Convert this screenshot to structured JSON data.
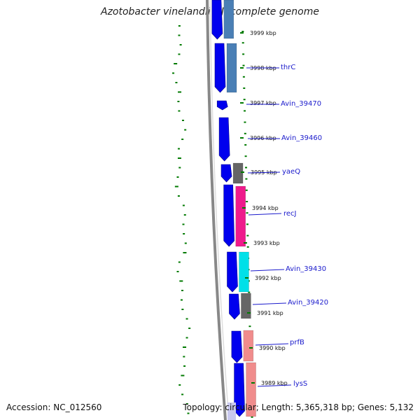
{
  "title": "Azotobacter vinelandii DJ, complete genome",
  "accession_text": "Accession: NC_012560",
  "summary_text": "Topology: circular; Length: 5,365,318 bp; Genes: 5,132",
  "scale_ticks": [
    {
      "label": "3999 kbp"
    },
    {
      "label": "3998 kbp"
    },
    {
      "label": "3997 kbp"
    },
    {
      "label": "3996 kbp"
    },
    {
      "label": "3995 kbp"
    },
    {
      "label": "3994 kbp"
    },
    {
      "label": "3993 kbp"
    },
    {
      "label": "3992 kbp"
    },
    {
      "label": "3991 kbp"
    },
    {
      "label": "3990 kbp"
    },
    {
      "label": "3989 kbp"
    }
  ],
  "genes": [
    {
      "label": "thrC",
      "color": "#4a7fb5"
    },
    {
      "label": "Avin_39470",
      "color": "#ffffff"
    },
    {
      "label": "Avin_39460",
      "color": "#ffffff"
    },
    {
      "label": "yaeQ",
      "color": "#666666"
    },
    {
      "label": "recJ",
      "color": "#ee1c8c"
    },
    {
      "label": "Avin_39430",
      "color": "#00e0e8"
    },
    {
      "label": "Avin_39420",
      "color": "#666666"
    },
    {
      "label": "prfB",
      "color": "#f08c8c"
    },
    {
      "label": "lysS",
      "color": "#f08c8c"
    }
  ],
  "colors": {
    "cds_arrow": "#0000ee",
    "gc_skew": "#007a00",
    "backbone": "#888888",
    "label_line": "#1a1acc"
  }
}
